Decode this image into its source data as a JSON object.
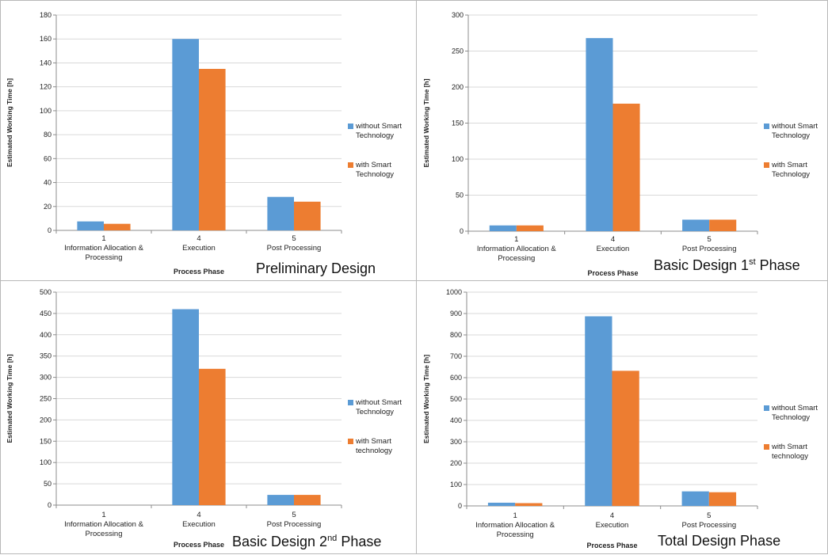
{
  "chart_data": [
    {
      "type": "bar",
      "caption": "Preliminary Design",
      "caption_sup": "",
      "caption_tail": "",
      "ylabel": "Estimated Working Time [h]",
      "xlabel": "Process Phase",
      "categories": [
        [
          "1",
          "Information Allocation &",
          "Processing"
        ],
        [
          "4",
          "Execution"
        ],
        [
          "5",
          "Post Processing"
        ]
      ],
      "ylim": [
        0,
        180
      ],
      "ystep": 20,
      "series": [
        {
          "name": [
            "without Smart",
            "Technology"
          ],
          "color": "#5b9bd5",
          "values": [
            7.5,
            160,
            28
          ]
        },
        {
          "name": [
            "with Smart",
            "Technology"
          ],
          "color": "#ed7d31",
          "values": [
            5.5,
            135,
            24
          ]
        }
      ],
      "legend": "right",
      "grid": true
    },
    {
      "type": "bar",
      "caption": "Basic Design 1",
      "caption_sup": "st",
      "caption_tail": " Phase",
      "ylabel": "Estimated Working Time [h]",
      "xlabel": "Process Phase",
      "categories": [
        [
          "1",
          "Information Allocation &",
          "Processing"
        ],
        [
          "4",
          "Execution"
        ],
        [
          "5",
          "Post Processing"
        ]
      ],
      "ylim": [
        0,
        300
      ],
      "ystep": 50,
      "series": [
        {
          "name": [
            "without Smart",
            "Technology"
          ],
          "color": "#5b9bd5",
          "values": [
            8,
            268,
            16
          ]
        },
        {
          "name": [
            "with Smart",
            "Technology"
          ],
          "color": "#ed7d31",
          "values": [
            8,
            177,
            16
          ]
        }
      ],
      "legend": "right",
      "grid": true
    },
    {
      "type": "bar",
      "caption": "Basic Design 2",
      "caption_sup": "nd",
      "caption_tail": " Phase",
      "ylabel": "Estimated Working Time [h]",
      "xlabel": "Process Phase",
      "categories": [
        [
          "1",
          "Information Allocation &",
          "Processing"
        ],
        [
          "4",
          "Execution"
        ],
        [
          "5",
          "Post Processing"
        ]
      ],
      "ylim": [
        0,
        500
      ],
      "ystep": 50,
      "series": [
        {
          "name": [
            "without Smart",
            "Technology"
          ],
          "color": "#5b9bd5",
          "values": [
            0,
            460,
            24
          ]
        },
        {
          "name": [
            "with Smart",
            "technology"
          ],
          "color": "#ed7d31",
          "values": [
            0,
            320,
            24
          ]
        }
      ],
      "legend": "right",
      "grid": true
    },
    {
      "type": "bar",
      "caption": "Total Design Phase",
      "caption_sup": "",
      "caption_tail": "",
      "ylabel": "Estimated Working Time [h]",
      "xlabel": "Process Phase",
      "categories": [
        [
          "1",
          "Information Allocation &",
          "Processing"
        ],
        [
          "4",
          "Execution"
        ],
        [
          "5",
          "Post Processing"
        ]
      ],
      "ylim": [
        0,
        1000
      ],
      "ystep": 100,
      "series": [
        {
          "name": [
            "without Smart",
            "Technology"
          ],
          "color": "#5b9bd5",
          "values": [
            15,
            887,
            68
          ]
        },
        {
          "name": [
            "with Smart",
            "technology"
          ],
          "color": "#ed7d31",
          "values": [
            13,
            632,
            64
          ]
        }
      ],
      "legend": "right",
      "grid": true
    }
  ]
}
